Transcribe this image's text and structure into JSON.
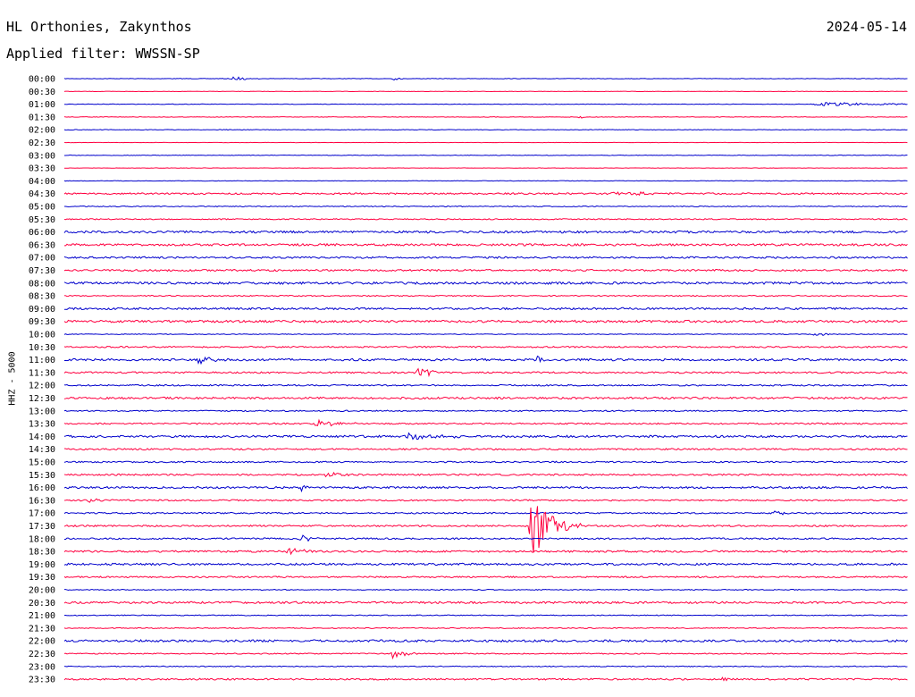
{
  "header": {
    "station": "HL Orthonies, Zakynthos",
    "date": "2024-05-14",
    "filter": "Applied filter: WWSSN-SP"
  },
  "colors": {
    "even": "#0000cc",
    "odd": "#ff0040"
  },
  "chart_data": {
    "type": "line",
    "title": "HL Orthonies, Zakynthos",
    "ylabel": "HHZ - 5000",
    "rows": [
      "00:00",
      "00:30",
      "01:00",
      "01:30",
      "02:00",
      "02:30",
      "03:00",
      "03:30",
      "04:00",
      "04:30",
      "05:00",
      "05:30",
      "06:00",
      "06:30",
      "07:00",
      "07:30",
      "08:00",
      "08:30",
      "09:00",
      "09:30",
      "10:00",
      "10:30",
      "11:00",
      "11:30",
      "12:00",
      "12:30",
      "13:00",
      "13:30",
      "14:00",
      "14:30",
      "15:00",
      "15:30",
      "16:00",
      "16:30",
      "17:00",
      "17:30",
      "18:00",
      "18:30",
      "19:00",
      "19:30",
      "20:00",
      "20:30",
      "21:00",
      "21:30",
      "22:00",
      "22:30",
      "23:00",
      "23:30"
    ],
    "noise": [
      0.3,
      0.2,
      0.3,
      0.3,
      0.3,
      0.2,
      0.3,
      0.2,
      0.3,
      0.9,
      0.5,
      0.6,
      1.2,
      1.2,
      1.0,
      1.0,
      1.3,
      0.6,
      1.1,
      1.3,
      0.4,
      0.8,
      1.2,
      0.9,
      0.8,
      1.1,
      0.7,
      0.8,
      1.2,
      0.9,
      0.8,
      0.9,
      1.1,
      0.8,
      0.8,
      0.9,
      0.9,
      1.0,
      1.1,
      0.8,
      0.5,
      1.1,
      0.5,
      0.5,
      1.2,
      0.6,
      0.5,
      0.9
    ],
    "events": [
      {
        "row": 0,
        "t": 0.2,
        "amp": 3,
        "dur": 0.012
      },
      {
        "row": 0,
        "t": 0.39,
        "amp": 2,
        "dur": 0.008
      },
      {
        "row": 2,
        "t": 0.9,
        "amp": 3,
        "dur": 0.05
      },
      {
        "row": 3,
        "t": 0.61,
        "amp": 2,
        "dur": 0.006
      },
      {
        "row": 4,
        "t": 0.18,
        "amp": 2,
        "dur": 0.006
      },
      {
        "row": 9,
        "t": 0.65,
        "amp": 2,
        "dur": 0.05
      },
      {
        "row": 20,
        "t": 0.89,
        "amp": 3,
        "dur": 0.01
      },
      {
        "row": 22,
        "t": 0.16,
        "amp": 7,
        "dur": 0.012
      },
      {
        "row": 22,
        "t": 0.56,
        "amp": 5,
        "dur": 0.01
      },
      {
        "row": 23,
        "t": 0.42,
        "amp": 7,
        "dur": 0.012
      },
      {
        "row": 27,
        "t": 0.3,
        "amp": 5,
        "dur": 0.02
      },
      {
        "row": 28,
        "t": 0.41,
        "amp": 4,
        "dur": 0.03
      },
      {
        "row": 31,
        "t": 0.31,
        "amp": 3,
        "dur": 0.015
      },
      {
        "row": 32,
        "t": 0.28,
        "amp": 4,
        "dur": 0.01
      },
      {
        "row": 33,
        "t": 0.03,
        "amp": 3,
        "dur": 0.02
      },
      {
        "row": 34,
        "t": 0.84,
        "amp": 3,
        "dur": 0.012
      },
      {
        "row": 35,
        "t": 0.555,
        "amp": 38,
        "dur": 0.02
      },
      {
        "row": 36,
        "t": 0.28,
        "amp": 6,
        "dur": 0.01
      },
      {
        "row": 37,
        "t": 0.265,
        "amp": 9,
        "dur": 0.01
      },
      {
        "row": 45,
        "t": 0.39,
        "amp": 7,
        "dur": 0.012
      },
      {
        "row": 47,
        "t": 0.78,
        "amp": 3,
        "dur": 0.008
      }
    ]
  }
}
